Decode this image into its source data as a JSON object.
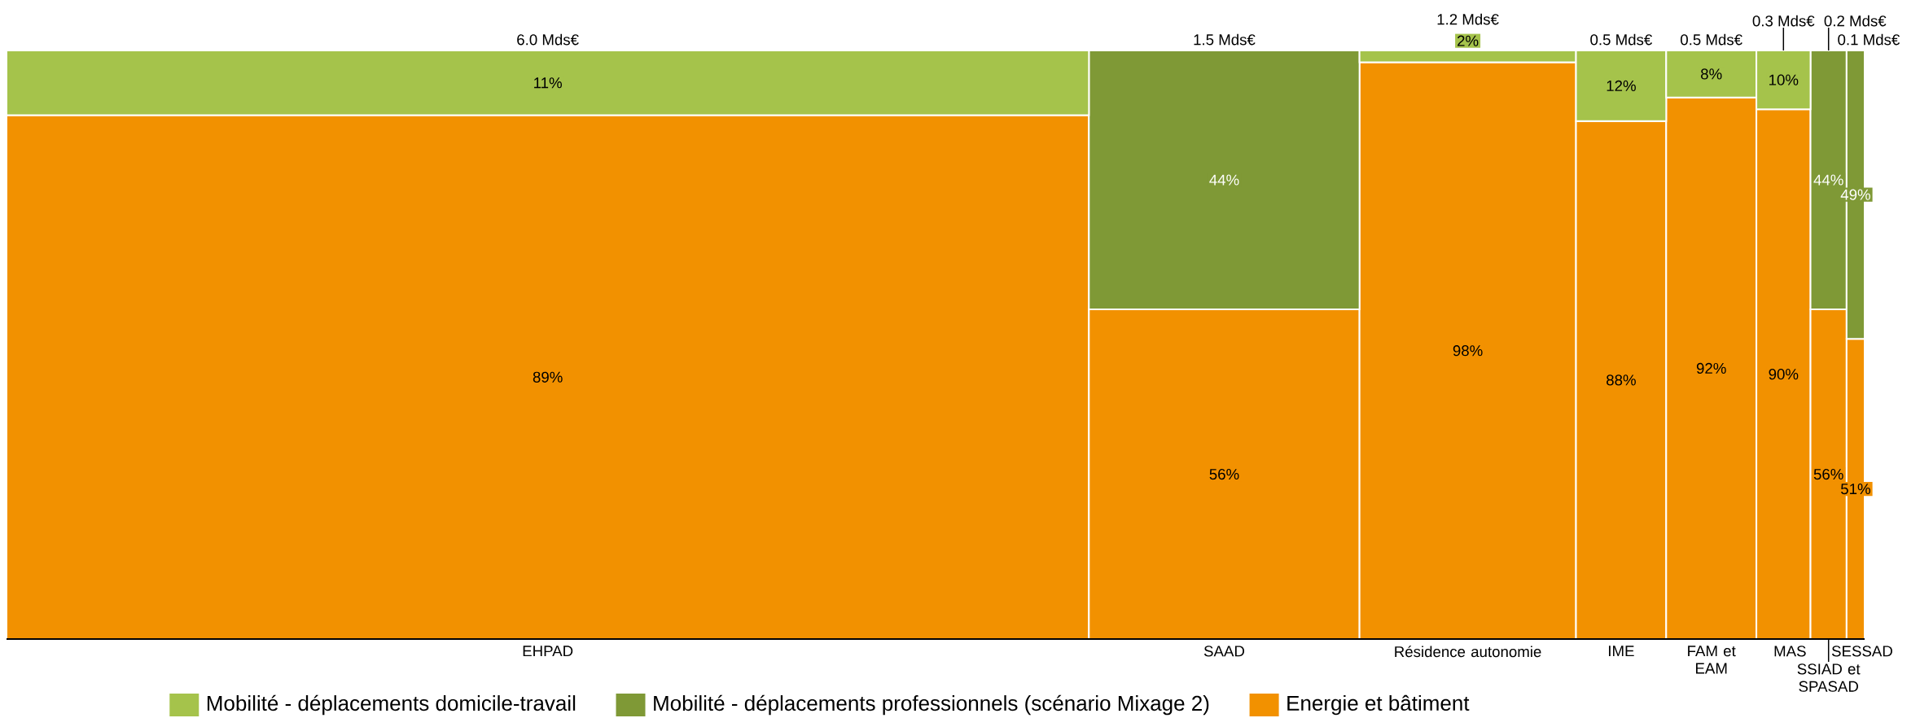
{
  "chart_data": {
    "type": "bar",
    "stacked": true,
    "categories": [
      "EHPAD",
      "SAAD",
      "Résidence autonomie",
      "IME",
      "FAM et EAM",
      "MAS",
      "SSIAD et SPASAD",
      "SESSAD"
    ],
    "series": [
      {
        "name": "Energie et bâtiment",
        "color": "#f29100",
        "values": [
          89,
          56,
          98,
          88,
          92,
          90,
          56,
          51
        ],
        "value_labels": [
          "89%",
          "56%",
          "98%",
          "88%",
          "92%",
          "90%",
          "56%",
          "51%"
        ]
      },
      {
        "name": "Mobilité - déplacements professionnels (scénario Mixage 2)",
        "color": "#7f9936",
        "values": [
          null,
          44,
          null,
          null,
          null,
          null,
          44,
          49
        ],
        "value_labels": [
          null,
          "44%",
          null,
          null,
          null,
          null,
          "44%",
          "49%"
        ]
      },
      {
        "name": "Mobilité - déplacements domicile-travail",
        "color": "#a5c34b",
        "values": [
          11,
          null,
          2,
          12,
          8,
          10,
          null,
          null
        ],
        "value_labels": [
          "11%",
          null,
          "2%",
          "12%",
          "8%",
          "10%",
          null,
          null
        ]
      }
    ],
    "annotations": [
      "6.0 Mds€",
      "1.5 Mds€",
      "1.2 Mds€",
      "0.5 Mds€",
      "0.5 Mds€",
      "0.3 Mds€",
      "0.2 Mds€",
      "0.1 Mds€"
    ],
    "ylim": [
      0,
      100
    ],
    "legend": "bottom",
    "tick_labels": "x"
  }
}
